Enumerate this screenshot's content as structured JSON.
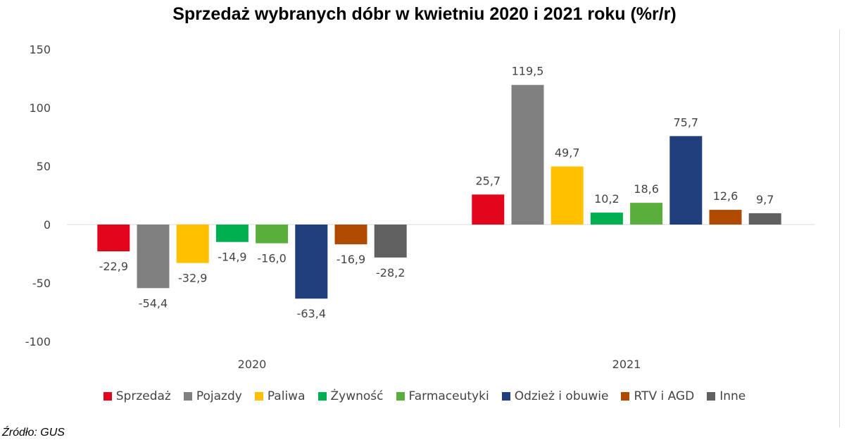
{
  "chart_data": {
    "type": "bar",
    "title": "Sprzedaż wybranych dóbr w kwietniu 2020 i 2021 roku (%r/r)",
    "categories": [
      "2020",
      "2021"
    ],
    "series": [
      {
        "name": "Sprzedaż",
        "color": "#e3051b",
        "values": [
          -22.9,
          25.7
        ],
        "labels": [
          "-22,9",
          "25,7"
        ]
      },
      {
        "name": "Pojazdy",
        "color": "#808080",
        "values": [
          -54.4,
          119.5
        ],
        "labels": [
          "-54,4",
          "119,5"
        ]
      },
      {
        "name": "Paliwa",
        "color": "#ffc000",
        "values": [
          -32.9,
          49.7
        ],
        "labels": [
          "-32,9",
          "49,7"
        ]
      },
      {
        "name": "Żywność",
        "color": "#00b050",
        "values": [
          -14.9,
          10.2
        ],
        "labels": [
          "-14,9",
          "10,2"
        ]
      },
      {
        "name": "Farmaceutyki",
        "color": "#5aaf3c",
        "values": [
          -16.0,
          18.6
        ],
        "labels": [
          "-16,0",
          "18,6"
        ]
      },
      {
        "name": "Odzież i obuwie",
        "color": "#203d7c",
        "values": [
          -63.4,
          75.7
        ],
        "labels": [
          "-63,4",
          "75,7"
        ]
      },
      {
        "name": "RTV i AGD",
        "color": "#b04a00",
        "values": [
          -16.9,
          12.6
        ],
        "labels": [
          "-16,9",
          "12,6"
        ]
      },
      {
        "name": "Inne",
        "color": "#606060",
        "values": [
          -28.2,
          9.7
        ],
        "labels": [
          "-28,2",
          "9,7"
        ]
      }
    ],
    "ylim": [
      -100,
      150
    ],
    "yticks": [
      150,
      100,
      50,
      0,
      -50,
      -100
    ],
    "ytick_labels": [
      "150",
      "100",
      "50",
      "0",
      "-50",
      "-100"
    ],
    "xlabel": "",
    "ylabel": "",
    "legend_position": "bottom",
    "grid": false
  },
  "source": "Źródło: GUS"
}
